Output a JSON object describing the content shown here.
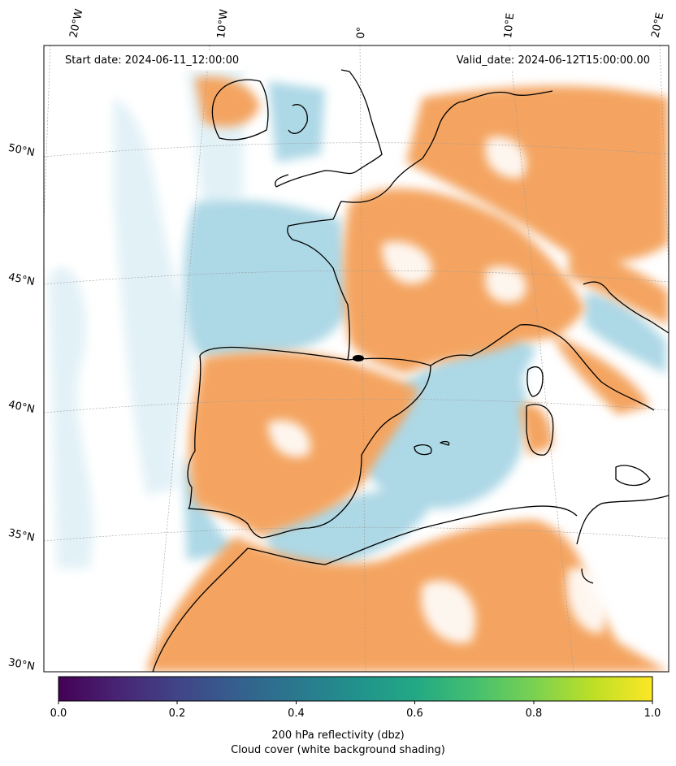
{
  "map": {
    "lon_labels": [
      "20°W",
      "10°W",
      "0°",
      "10°E",
      "20°E"
    ],
    "lat_labels": [
      "50°N",
      "45°N",
      "40°N",
      "35°N",
      "30°N"
    ],
    "start_date": "Start date: 2024-06-11_12:00:00",
    "valid_date": "Valid_date: 2024-06-12T15:00:00.00",
    "field_colors": {
      "land_reflectivity": "#f4a460",
      "sea_reflectivity": "#add8e6",
      "coastline": "#000000"
    }
  },
  "colorbar": {
    "colormap": "viridis",
    "range": [
      0.0,
      1.0
    ],
    "ticks": [
      "0.0",
      "0.2",
      "0.4",
      "0.6",
      "0.8",
      "1.0"
    ],
    "label_line1": "200 hPa reflectivity (dbz)",
    "label_line2": "Cloud cover (white background shading)"
  }
}
